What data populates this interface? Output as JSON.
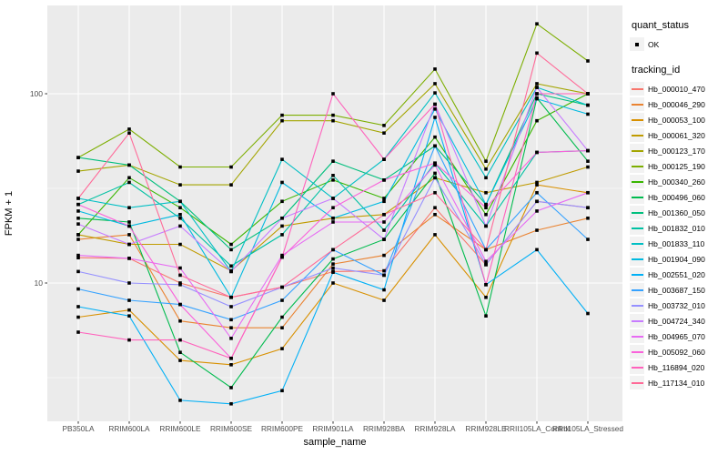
{
  "chart_data": {
    "type": "line",
    "title": "",
    "xlabel": "sample_name",
    "ylabel": "FPKM + 1",
    "y_scale": "log10",
    "y_ticks": [
      10,
      100
    ],
    "ylim": [
      1.9,
      290
    ],
    "grid": true,
    "legend_position": "right",
    "point_shape": "filled-black-square",
    "point_color": "#000000",
    "panel_bg": "#EBEBEB",
    "grid_color": "#FFFFFF",
    "tick_label_color": "#4D4D4D",
    "categories": [
      "PB350LA",
      "RRIM600LA",
      "RRIM600LE",
      "RRIM600SE",
      "RRIM600PE",
      "RRIM901LA",
      "RRIM928BA",
      "RRIM928LA",
      "RRIM928LE",
      "RRII105LA_Control",
      "RRII105LA_Stressed"
    ],
    "series": [
      {
        "name": "Hb_000010_470",
        "color": "#F8766D",
        "values": [
          13.6,
          13.5,
          10,
          8.4,
          9.5,
          11.5,
          11.6,
          25,
          12.5,
          27,
          25
        ]
      },
      {
        "name": "Hb_000046_290",
        "color": "#EA8331",
        "values": [
          17,
          18,
          6.3,
          5.8,
          5.8,
          12.6,
          14,
          23,
          15,
          19,
          22
        ]
      },
      {
        "name": "Hb_000053_100",
        "color": "#D89000",
        "values": [
          6.6,
          7.2,
          3.9,
          3.7,
          4.5,
          10,
          8.1,
          18,
          8.4,
          33,
          30
        ]
      },
      {
        "name": "Hb_000061_320",
        "color": "#C09B00",
        "values": [
          18,
          16,
          16,
          11.6,
          20,
          22,
          23,
          36,
          30,
          34,
          41
        ]
      },
      {
        "name": "Hb_000123_170",
        "color": "#A3A500",
        "values": [
          39,
          42,
          33,
          33,
          72,
          72,
          62,
          113,
          40,
          113,
          100
        ]
      },
      {
        "name": "Hb_000125_190",
        "color": "#7CAE00",
        "values": [
          46,
          65,
          41,
          41,
          77,
          77,
          68,
          135,
          44,
          234,
          149
        ]
      },
      {
        "name": "Hb_000340_260",
        "color": "#39B600",
        "values": [
          18,
          36,
          25,
          16,
          27,
          35,
          28,
          59,
          23,
          72,
          100
        ]
      },
      {
        "name": "Hb_000496_060",
        "color": "#00BB4E",
        "values": [
          22,
          21,
          4.3,
          2.8,
          6.6,
          13.4,
          17,
          38,
          6.7,
          95,
          44
        ]
      },
      {
        "name": "Hb_001360_050",
        "color": "#00BF7D",
        "values": [
          46,
          42,
          27,
          15,
          22,
          44,
          35,
          53,
          26,
          100,
          87
        ]
      },
      {
        "name": "Hb_001832_010",
        "color": "#00C1A3",
        "values": [
          26,
          34,
          22,
          12.3,
          18,
          37,
          19,
          43,
          20,
          49,
          50
        ]
      },
      {
        "name": "Hb_001833_110",
        "color": "#00BFC4",
        "values": [
          28,
          25,
          27,
          11.5,
          45,
          28,
          45,
          101,
          36,
          108,
          87
        ]
      },
      {
        "name": "Hb_001904_090",
        "color": "#00BAE0",
        "values": [
          24,
          20,
          23,
          8.4,
          34,
          22,
          27,
          83,
          26,
          94,
          78
        ]
      },
      {
        "name": "Hb_002551_020",
        "color": "#00B0F6",
        "values": [
          7.5,
          6.7,
          2.4,
          2.3,
          2.7,
          11.4,
          9.2,
          75,
          9.8,
          15,
          6.9
        ]
      },
      {
        "name": "Hb_003687_150",
        "color": "#35A2FF",
        "values": [
          9.3,
          8.1,
          7.7,
          6.4,
          8.1,
          15,
          11,
          53,
          15,
          30,
          17
        ]
      },
      {
        "name": "Hb_003732_010",
        "color": "#9590FF",
        "values": [
          11.5,
          10,
          9.8,
          7.5,
          9.5,
          12,
          11,
          36,
          12.5,
          27,
          25
        ]
      },
      {
        "name": "Hb_004724_340",
        "color": "#C77CFF",
        "values": [
          20.5,
          16,
          20,
          11.5,
          22,
          28,
          17,
          88,
          20,
          108,
          50
        ]
      },
      {
        "name": "Hb_004965_070",
        "color": "#E76BF3",
        "values": [
          14,
          13.5,
          12,
          5.1,
          14,
          21,
          21,
          42,
          13,
          24,
          30
        ]
      },
      {
        "name": "Hb_005092_060",
        "color": "#FA62DB",
        "values": [
          26,
          20,
          7.7,
          4,
          13.7,
          25,
          35,
          43,
          25,
          49,
          50
        ]
      },
      {
        "name": "Hb_116894_020",
        "color": "#FF62BC",
        "values": [
          5.5,
          5,
          5,
          4,
          13.7,
          100,
          45,
          88,
          9.8,
          100,
          100
        ]
      },
      {
        "name": "Hb_117134_010",
        "color": "#FF6A98",
        "values": [
          28,
          62,
          11,
          8.4,
          9.5,
          15,
          23,
          30,
          15,
          164,
          100
        ]
      }
    ]
  },
  "legend": {
    "quant": {
      "title": "quant_status",
      "items": [
        {
          "label": "OK"
        }
      ]
    },
    "tracking": {
      "title": "tracking_id"
    }
  }
}
